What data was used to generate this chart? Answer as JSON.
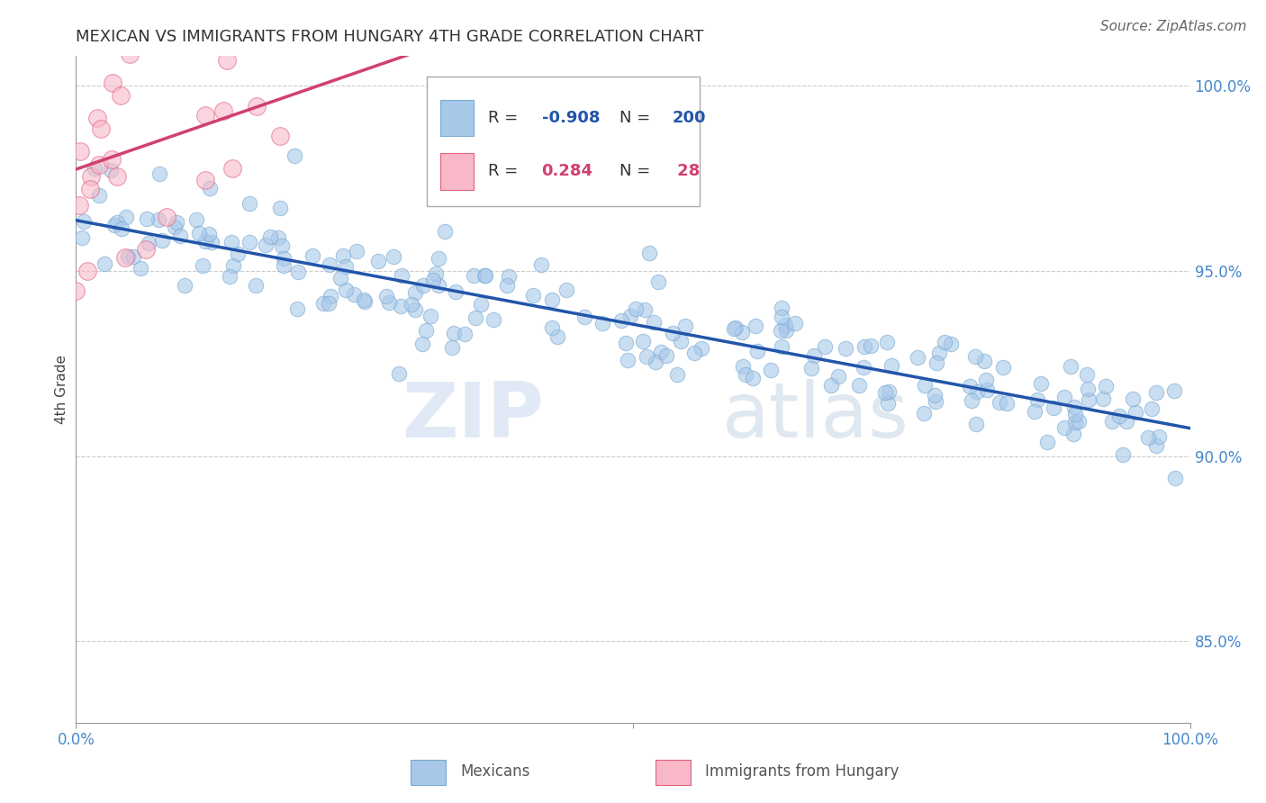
{
  "title": "MEXICAN VS IMMIGRANTS FROM HUNGARY 4TH GRADE CORRELATION CHART",
  "source_text": "Source: ZipAtlas.com",
  "ylabel": "4th Grade",
  "xlim": [
    0.0,
    1.0
  ],
  "ylim": [
    0.828,
    1.008
  ],
  "yticks": [
    0.85,
    0.9,
    0.95,
    1.0
  ],
  "ytick_labels": [
    "85.0%",
    "90.0%",
    "95.0%",
    "100.0%"
  ],
  "blue_color": "#a8c8ea",
  "blue_edge_color": "#7aaad0",
  "blue_line_color": "#2255aa",
  "pink_color": "#f8b8c8",
  "pink_edge_color": "#e06080",
  "pink_line_color": "#d04070",
  "legend_blue_label": "Mexicans",
  "legend_pink_label": "Immigrants from Hungary",
  "R_blue": -0.908,
  "N_blue": 200,
  "R_pink": 0.284,
  "N_pink": 28,
  "watermark_zip": "ZIP",
  "watermark_atlas": "atlas",
  "background_color": "#ffffff",
  "grid_color": "#cccccc",
  "axis_color": "#999999",
  "title_color": "#333333",
  "tick_label_color": "#4488cc",
  "title_fontsize": 13,
  "tick_fontsize": 12,
  "source_fontsize": 11
}
